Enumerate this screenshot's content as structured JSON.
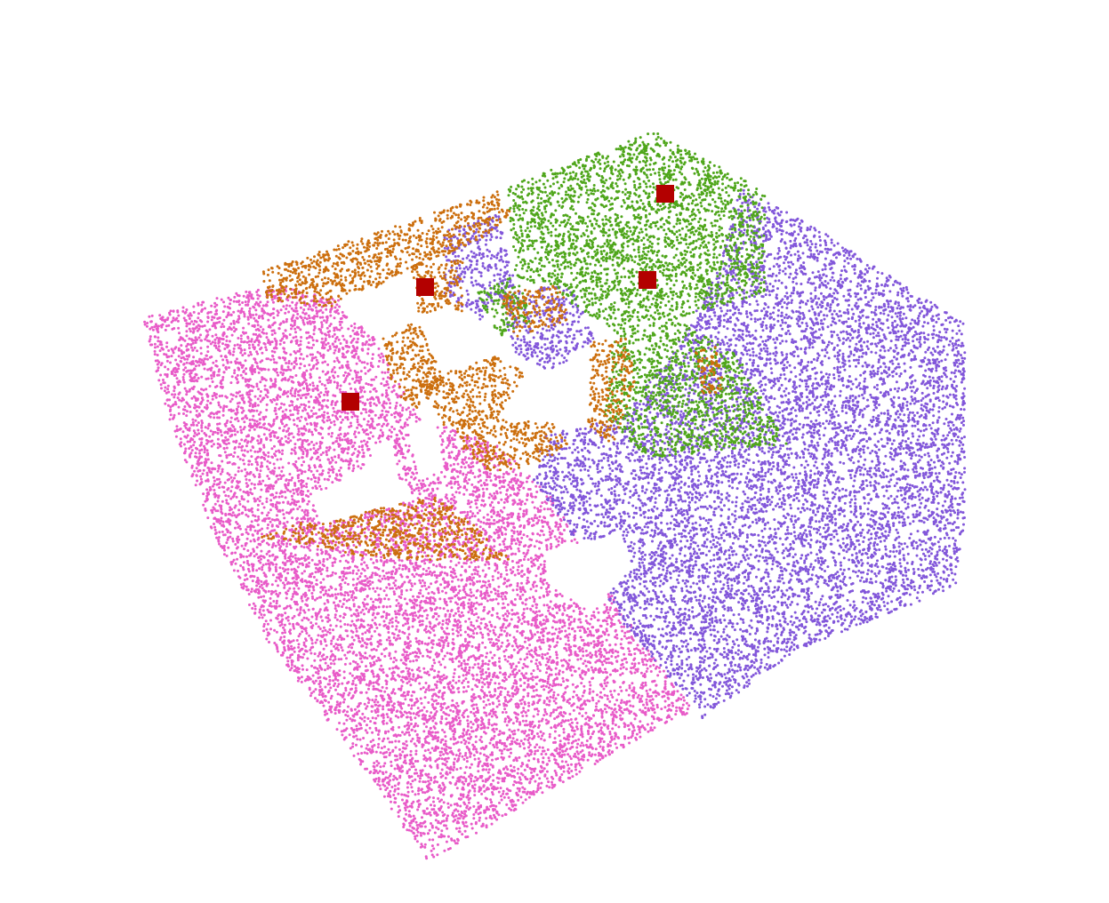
{
  "segments": [
    {
      "id": "floor-left",
      "color": "#e85bc8"
    },
    {
      "id": "floor-right-and-wall",
      "color": "#8257da"
    },
    {
      "id": "back-wall-and-shelf",
      "color": "#4fa61b"
    },
    {
      "id": "furniture-chairs",
      "color": "#cc6f0e"
    }
  ],
  "markers": {
    "count": 4,
    "color": "#b30000"
  }
}
